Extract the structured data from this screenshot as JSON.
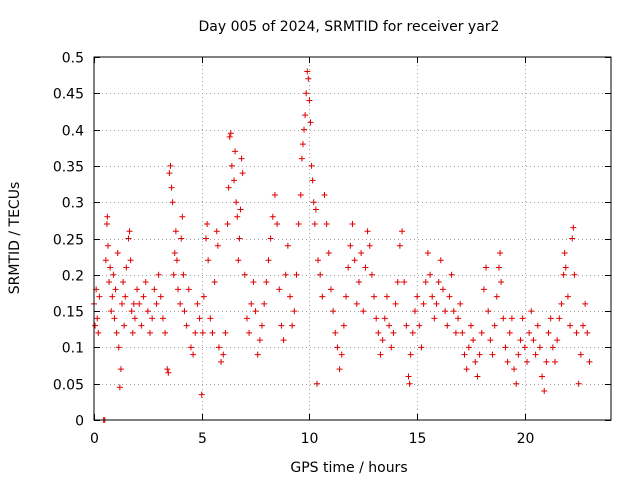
{
  "chart_data": {
    "type": "scatter",
    "title": "Day 005 of 2024, SRMTID for receiver yar2",
    "xlabel": "GPS time / hours",
    "ylabel": "SRMTID / TECUs",
    "xlim": [
      0,
      24
    ],
    "ylim": [
      0,
      0.5
    ],
    "x_ticks": [
      0,
      5,
      10,
      15,
      20
    ],
    "x_tick_labels": [
      "0",
      "5",
      "10",
      "15",
      "20"
    ],
    "y_ticks": [
      0,
      0.05,
      0.1,
      0.15,
      0.2,
      0.25,
      0.3,
      0.35,
      0.4,
      0.45,
      0.5
    ],
    "y_tick_labels": [
      "0",
      "0.05",
      "0.1",
      "0.15",
      "0.2",
      "0.25",
      "0.3",
      "0.35",
      "0.4",
      "0.45",
      "0.5"
    ],
    "grid": true,
    "series": [
      {
        "name": "SRMTID",
        "color": "#e00000",
        "marker": "plus",
        "points": [
          [
            0.0,
            0.16
          ],
          [
            0.05,
            0.13
          ],
          [
            0.1,
            0.18
          ],
          [
            0.15,
            0.14
          ],
          [
            0.2,
            0.12
          ],
          [
            0.25,
            0.17
          ],
          [
            0.45,
            0.0
          ],
          [
            0.5,
            0.0
          ],
          [
            0.55,
            0.22
          ],
          [
            0.6,
            0.27
          ],
          [
            0.62,
            0.28
          ],
          [
            0.65,
            0.24
          ],
          [
            0.7,
            0.19
          ],
          [
            0.75,
            0.21
          ],
          [
            0.8,
            0.15
          ],
          [
            0.85,
            0.17
          ],
          [
            0.9,
            0.2
          ],
          [
            0.95,
            0.14
          ],
          [
            1.0,
            0.18
          ],
          [
            1.05,
            0.12
          ],
          [
            1.1,
            0.23
          ],
          [
            1.15,
            0.1
          ],
          [
            1.2,
            0.045
          ],
          [
            1.25,
            0.07
          ],
          [
            1.3,
            0.16
          ],
          [
            1.35,
            0.19
          ],
          [
            1.4,
            0.13
          ],
          [
            1.45,
            0.17
          ],
          [
            1.5,
            0.21
          ],
          [
            1.6,
            0.25
          ],
          [
            1.65,
            0.26
          ],
          [
            1.7,
            0.22
          ],
          [
            1.75,
            0.15
          ],
          [
            1.8,
            0.12
          ],
          [
            1.85,
            0.16
          ],
          [
            1.9,
            0.14
          ],
          [
            2.0,
            0.18
          ],
          [
            2.1,
            0.16
          ],
          [
            2.2,
            0.13
          ],
          [
            2.3,
            0.17
          ],
          [
            2.4,
            0.19
          ],
          [
            2.5,
            0.15
          ],
          [
            2.6,
            0.12
          ],
          [
            2.7,
            0.14
          ],
          [
            2.8,
            0.18
          ],
          [
            2.9,
            0.16
          ],
          [
            3.0,
            0.2
          ],
          [
            3.1,
            0.17
          ],
          [
            3.2,
            0.14
          ],
          [
            3.3,
            0.12
          ],
          [
            3.4,
            0.07
          ],
          [
            3.45,
            0.065
          ],
          [
            3.5,
            0.34
          ],
          [
            3.55,
            0.35
          ],
          [
            3.6,
            0.32
          ],
          [
            3.65,
            0.3
          ],
          [
            3.7,
            0.2
          ],
          [
            3.75,
            0.23
          ],
          [
            3.8,
            0.26
          ],
          [
            3.85,
            0.22
          ],
          [
            3.9,
            0.18
          ],
          [
            4.0,
            0.16
          ],
          [
            4.05,
            0.25
          ],
          [
            4.1,
            0.28
          ],
          [
            4.15,
            0.2
          ],
          [
            4.2,
            0.15
          ],
          [
            4.3,
            0.13
          ],
          [
            4.4,
            0.18
          ],
          [
            4.5,
            0.1
          ],
          [
            4.6,
            0.09
          ],
          [
            4.7,
            0.12
          ],
          [
            4.8,
            0.16
          ],
          [
            4.9,
            0.14
          ],
          [
            5.0,
            0.035
          ],
          [
            5.05,
            0.12
          ],
          [
            5.1,
            0.17
          ],
          [
            5.2,
            0.25
          ],
          [
            5.25,
            0.27
          ],
          [
            5.3,
            0.22
          ],
          [
            5.4,
            0.14
          ],
          [
            5.5,
            0.12
          ],
          [
            5.6,
            0.19
          ],
          [
            5.7,
            0.26
          ],
          [
            5.75,
            0.24
          ],
          [
            5.8,
            0.1
          ],
          [
            5.9,
            0.08
          ],
          [
            6.0,
            0.09
          ],
          [
            6.1,
            0.12
          ],
          [
            6.2,
            0.27
          ],
          [
            6.25,
            0.32
          ],
          [
            6.3,
            0.39
          ],
          [
            6.35,
            0.395
          ],
          [
            6.4,
            0.35
          ],
          [
            6.5,
            0.33
          ],
          [
            6.55,
            0.37
          ],
          [
            6.6,
            0.3
          ],
          [
            6.65,
            0.28
          ],
          [
            6.7,
            0.22
          ],
          [
            6.75,
            0.25
          ],
          [
            6.8,
            0.29
          ],
          [
            6.85,
            0.36
          ],
          [
            6.9,
            0.34
          ],
          [
            7.0,
            0.2
          ],
          [
            7.1,
            0.14
          ],
          [
            7.2,
            0.12
          ],
          [
            7.3,
            0.16
          ],
          [
            7.4,
            0.19
          ],
          [
            7.5,
            0.15
          ],
          [
            7.6,
            0.09
          ],
          [
            7.7,
            0.11
          ],
          [
            7.8,
            0.13
          ],
          [
            7.9,
            0.16
          ],
          [
            8.0,
            0.19
          ],
          [
            8.1,
            0.22
          ],
          [
            8.2,
            0.25
          ],
          [
            8.3,
            0.28
          ],
          [
            8.4,
            0.31
          ],
          [
            8.5,
            0.27
          ],
          [
            8.6,
            0.18
          ],
          [
            8.7,
            0.13
          ],
          [
            8.8,
            0.11
          ],
          [
            8.9,
            0.2
          ],
          [
            9.0,
            0.24
          ],
          [
            9.1,
            0.17
          ],
          [
            9.2,
            0.13
          ],
          [
            9.3,
            0.15
          ],
          [
            9.4,
            0.2
          ],
          [
            9.5,
            0.27
          ],
          [
            9.6,
            0.31
          ],
          [
            9.65,
            0.36
          ],
          [
            9.7,
            0.38
          ],
          [
            9.75,
            0.4
          ],
          [
            9.8,
            0.42
          ],
          [
            9.85,
            0.45
          ],
          [
            9.9,
            0.48
          ],
          [
            9.95,
            0.47
          ],
          [
            10.0,
            0.44
          ],
          [
            10.05,
            0.41
          ],
          [
            10.1,
            0.35
          ],
          [
            10.15,
            0.33
          ],
          [
            10.2,
            0.3
          ],
          [
            10.25,
            0.27
          ],
          [
            10.3,
            0.29
          ],
          [
            10.35,
            0.05
          ],
          [
            10.4,
            0.22
          ],
          [
            10.5,
            0.2
          ],
          [
            10.6,
            0.17
          ],
          [
            10.7,
            0.31
          ],
          [
            10.8,
            0.27
          ],
          [
            10.9,
            0.23
          ],
          [
            11.0,
            0.18
          ],
          [
            11.1,
            0.15
          ],
          [
            11.2,
            0.12
          ],
          [
            11.3,
            0.1
          ],
          [
            11.4,
            0.07
          ],
          [
            11.5,
            0.09
          ],
          [
            11.6,
            0.13
          ],
          [
            11.7,
            0.17
          ],
          [
            11.8,
            0.21
          ],
          [
            11.9,
            0.24
          ],
          [
            12.0,
            0.27
          ],
          [
            12.1,
            0.22
          ],
          [
            12.2,
            0.16
          ],
          [
            12.3,
            0.19
          ],
          [
            12.4,
            0.23
          ],
          [
            12.5,
            0.15
          ],
          [
            12.6,
            0.21
          ],
          [
            12.7,
            0.26
          ],
          [
            12.8,
            0.24
          ],
          [
            12.9,
            0.2
          ],
          [
            13.0,
            0.17
          ],
          [
            13.1,
            0.14
          ],
          [
            13.2,
            0.12
          ],
          [
            13.3,
            0.09
          ],
          [
            13.4,
            0.11
          ],
          [
            13.5,
            0.14
          ],
          [
            13.6,
            0.17
          ],
          [
            13.7,
            0.13
          ],
          [
            13.8,
            0.1
          ],
          [
            13.9,
            0.12
          ],
          [
            14.0,
            0.16
          ],
          [
            14.1,
            0.19
          ],
          [
            14.2,
            0.24
          ],
          [
            14.3,
            0.26
          ],
          [
            14.4,
            0.19
          ],
          [
            14.5,
            0.13
          ],
          [
            14.6,
            0.06
          ],
          [
            14.65,
            0.05
          ],
          [
            14.7,
            0.09
          ],
          [
            14.8,
            0.12
          ],
          [
            14.9,
            0.15
          ],
          [
            15.0,
            0.17
          ],
          [
            15.1,
            0.13
          ],
          [
            15.2,
            0.1
          ],
          [
            15.3,
            0.16
          ],
          [
            15.4,
            0.19
          ],
          [
            15.5,
            0.23
          ],
          [
            15.6,
            0.2
          ],
          [
            15.7,
            0.17
          ],
          [
            15.8,
            0.14
          ],
          [
            15.9,
            0.16
          ],
          [
            16.0,
            0.19
          ],
          [
            16.1,
            0.22
          ],
          [
            16.2,
            0.18
          ],
          [
            16.3,
            0.15
          ],
          [
            16.4,
            0.13
          ],
          [
            16.5,
            0.17
          ],
          [
            16.6,
            0.2
          ],
          [
            16.7,
            0.15
          ],
          [
            16.8,
            0.12
          ],
          [
            16.9,
            0.14
          ],
          [
            17.0,
            0.16
          ],
          [
            17.1,
            0.12
          ],
          [
            17.2,
            0.09
          ],
          [
            17.3,
            0.07
          ],
          [
            17.4,
            0.1
          ],
          [
            17.5,
            0.13
          ],
          [
            17.6,
            0.11
          ],
          [
            17.7,
            0.08
          ],
          [
            17.8,
            0.06
          ],
          [
            17.9,
            0.09
          ],
          [
            18.0,
            0.12
          ],
          [
            18.1,
            0.18
          ],
          [
            18.2,
            0.21
          ],
          [
            18.3,
            0.15
          ],
          [
            18.4,
            0.11
          ],
          [
            18.5,
            0.09
          ],
          [
            18.6,
            0.13
          ],
          [
            18.7,
            0.17
          ],
          [
            18.8,
            0.21
          ],
          [
            18.85,
            0.23
          ],
          [
            18.9,
            0.19
          ],
          [
            19.0,
            0.14
          ],
          [
            19.1,
            0.1
          ],
          [
            19.2,
            0.08
          ],
          [
            19.3,
            0.12
          ],
          [
            19.4,
            0.14
          ],
          [
            19.5,
            0.07
          ],
          [
            19.6,
            0.05
          ],
          [
            19.7,
            0.09
          ],
          [
            19.8,
            0.11
          ],
          [
            19.9,
            0.14
          ],
          [
            20.0,
            0.1
          ],
          [
            20.1,
            0.08
          ],
          [
            20.2,
            0.12
          ],
          [
            20.3,
            0.15
          ],
          [
            20.4,
            0.11
          ],
          [
            20.5,
            0.09
          ],
          [
            20.6,
            0.13
          ],
          [
            20.7,
            0.1
          ],
          [
            20.8,
            0.06
          ],
          [
            20.9,
            0.04
          ],
          [
            21.0,
            0.08
          ],
          [
            21.1,
            0.12
          ],
          [
            21.2,
            0.14
          ],
          [
            21.3,
            0.1
          ],
          [
            21.4,
            0.08
          ],
          [
            21.5,
            0.11
          ],
          [
            21.6,
            0.14
          ],
          [
            21.7,
            0.16
          ],
          [
            21.8,
            0.2
          ],
          [
            21.85,
            0.23
          ],
          [
            21.9,
            0.21
          ],
          [
            22.0,
            0.17
          ],
          [
            22.1,
            0.13
          ],
          [
            22.2,
            0.25
          ],
          [
            22.25,
            0.265
          ],
          [
            22.3,
            0.2
          ],
          [
            22.4,
            0.12
          ],
          [
            22.5,
            0.05
          ],
          [
            22.6,
            0.09
          ],
          [
            22.7,
            0.13
          ],
          [
            22.8,
            0.16
          ],
          [
            22.9,
            0.12
          ],
          [
            23.0,
            0.08
          ]
        ]
      }
    ]
  }
}
